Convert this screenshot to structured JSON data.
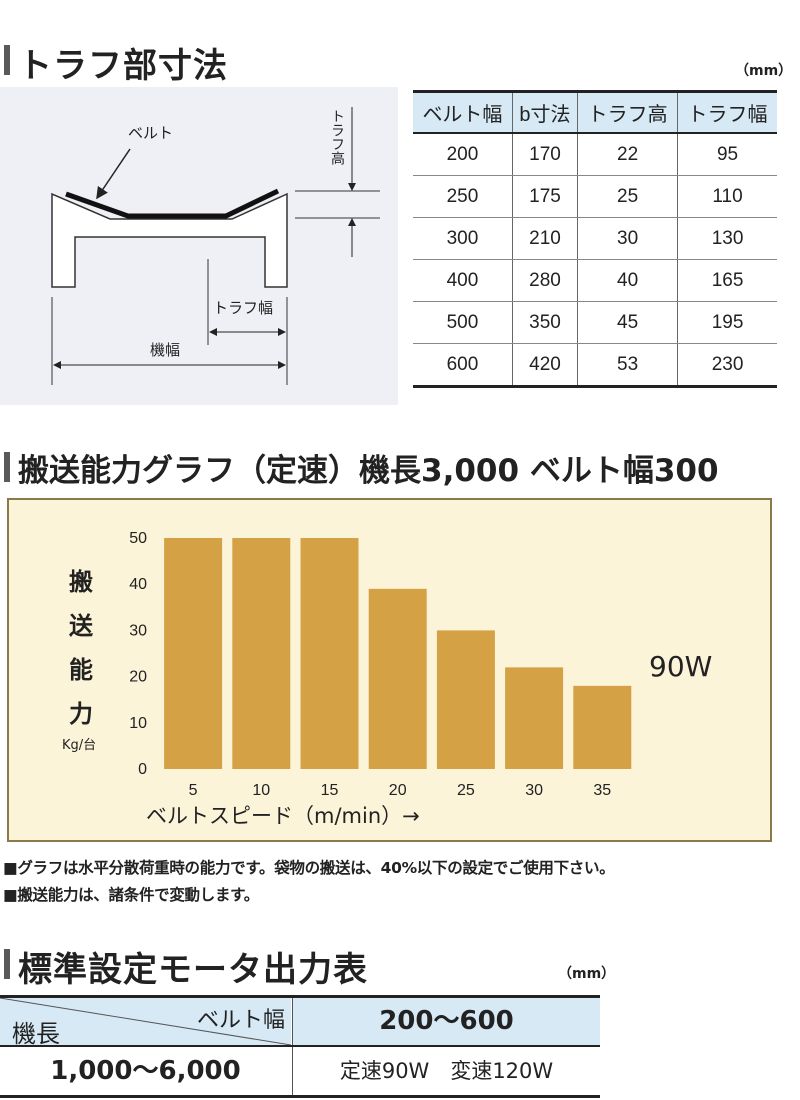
{
  "section1": {
    "title": "トラフ部寸法",
    "unit": "（mm）"
  },
  "diagram": {
    "belt_label": "ベルト",
    "trough_height_label": "トラフ高",
    "trough_width_label": "トラフ幅",
    "machine_width_label": "機幅"
  },
  "spec_table": {
    "headers": [
      "ベルト幅",
      "b寸法",
      "トラフ高",
      "トラフ幅"
    ],
    "rows": [
      [
        "200",
        "170",
        "22",
        "95"
      ],
      [
        "250",
        "175",
        "25",
        "110"
      ],
      [
        "300",
        "210",
        "30",
        "130"
      ],
      [
        "400",
        "280",
        "40",
        "165"
      ],
      [
        "500",
        "350",
        "45",
        "195"
      ],
      [
        "600",
        "420",
        "53",
        "230"
      ]
    ]
  },
  "section2": {
    "title": "搬送能力グラフ（定速）機長3,000 ベルト幅300"
  },
  "chart_data": {
    "type": "bar",
    "categories": [
      "5",
      "10",
      "15",
      "20",
      "25",
      "30",
      "35"
    ],
    "values": [
      50,
      50,
      50,
      39,
      30,
      22,
      18
    ],
    "y_ticks": [
      "0",
      "10",
      "20",
      "30",
      "40",
      "50"
    ],
    "ylim": [
      0,
      50
    ],
    "ylabel_chars": [
      "搬",
      "送",
      "能",
      "力"
    ],
    "yunit": "Kg/台",
    "xlabel": "ベルトスピード（m/min）→",
    "annotation": "90W",
    "bar_color": "#d4a244",
    "background": "#fcf4d9"
  },
  "notes": [
    "■グラフは水平分散荷重時の能力です。袋物の搬送は、40%以下の設定でご使用下さい。",
    "■搬送能力は、諸条件で変動します。"
  ],
  "section3": {
    "title": "標準設定モータ出力表",
    "unit": "（mm）"
  },
  "motor_table": {
    "corner_top": "ベルト幅",
    "corner_bottom": "機長",
    "belt_range": "200〜600",
    "length_range": "1,000〜6,000",
    "output": "定速90W　変速120W",
    "header_color": "#d6e9f5"
  }
}
